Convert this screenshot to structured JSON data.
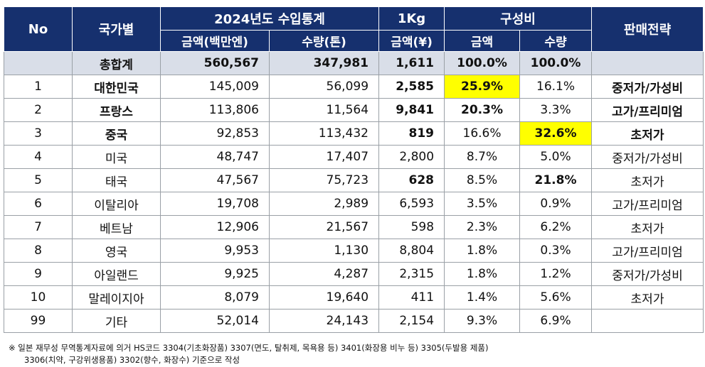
{
  "header": {
    "no": "No",
    "country": "국가별",
    "stats_title": "2024년도 수입통계",
    "amount": "금액(백만엔)",
    "quantity": "수량(톤)",
    "per_kg_top": "1Kg",
    "per_kg_bottom": "금액(¥)",
    "ratio_title": "구성비",
    "ratio_amount": "금액",
    "ratio_quantity": "수량",
    "strategy": "판매전략"
  },
  "total": {
    "label": "총합계",
    "amount": "560,567",
    "quantity": "347,981",
    "per_kg": "1,611",
    "ratio_amount": "100.0%",
    "ratio_quantity": "100.0%",
    "strategy": ""
  },
  "rows": [
    {
      "no": "1",
      "country": "대한민국",
      "amount": "145,009",
      "quantity": "56,099",
      "per_kg": "2,585",
      "ratio_amount": "25.9%",
      "ratio_quantity": "16.1%",
      "strategy": "중저가/가성비"
    },
    {
      "no": "2",
      "country": "프랑스",
      "amount": "113,806",
      "quantity": "11,564",
      "per_kg": "9,841",
      "ratio_amount": "20.3%",
      "ratio_quantity": "3.3%",
      "strategy": "고가/프리미엄"
    },
    {
      "no": "3",
      "country": "중국",
      "amount": "92,853",
      "quantity": "113,432",
      "per_kg": "819",
      "ratio_amount": "16.6%",
      "ratio_quantity": "32.6%",
      "strategy": "초저가"
    },
    {
      "no": "4",
      "country": "미국",
      "amount": "48,747",
      "quantity": "17,407",
      "per_kg": "2,800",
      "ratio_amount": "8.7%",
      "ratio_quantity": "5.0%",
      "strategy": "중저가/가성비"
    },
    {
      "no": "5",
      "country": "태국",
      "amount": "47,567",
      "quantity": "75,723",
      "per_kg": "628",
      "ratio_amount": "8.5%",
      "ratio_quantity": "21.8%",
      "strategy": "초저가"
    },
    {
      "no": "6",
      "country": "이탈리아",
      "amount": "19,708",
      "quantity": "2,989",
      "per_kg": "6,593",
      "ratio_amount": "3.5%",
      "ratio_quantity": "0.9%",
      "strategy": "고가/프리미엄"
    },
    {
      "no": "7",
      "country": "베트남",
      "amount": "12,906",
      "quantity": "21,567",
      "per_kg": "598",
      "ratio_amount": "2.3%",
      "ratio_quantity": "6.2%",
      "strategy": "초저가"
    },
    {
      "no": "8",
      "country": "영국",
      "amount": "9,953",
      "quantity": "1,130",
      "per_kg": "8,804",
      "ratio_amount": "1.8%",
      "ratio_quantity": "0.3%",
      "strategy": "고가/프리미엄"
    },
    {
      "no": "9",
      "country": "아일랜드",
      "amount": "9,925",
      "quantity": "4,287",
      "per_kg": "2,315",
      "ratio_amount": "1.8%",
      "ratio_quantity": "1.2%",
      "strategy": "중저가/가성비"
    },
    {
      "no": "10",
      "country": "말레이지아",
      "amount": "8,079",
      "quantity": "19,640",
      "per_kg": "411",
      "ratio_amount": "1.4%",
      "ratio_quantity": "5.6%",
      "strategy": "초저가"
    },
    {
      "no": "99",
      "country": "기타",
      "amount": "52,014",
      "quantity": "24,143",
      "per_kg": "2,154",
      "ratio_amount": "9.3%",
      "ratio_quantity": "6.9%",
      "strategy": ""
    }
  ],
  "footnote": {
    "line1": "※ 일본 재무성 무역통계자료에 의거 HS코드 3304(기초화장품) 3307(면도, 탈취제, 목욕용 등) 3401(화장용 비누 등) 3305(두발용 제품)",
    "line2": "3306(치약, 구강위생용품) 3302(향수, 화장수) 기준으로 작성"
  },
  "colors": {
    "header_bg": "#16306e",
    "total_bg": "#d9dee8",
    "highlight": "#ffff00"
  }
}
